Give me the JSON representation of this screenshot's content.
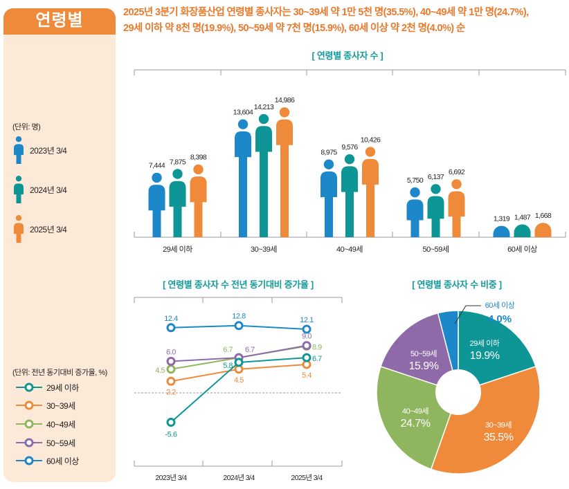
{
  "panel": {
    "title": "연령별",
    "bar_unit": "(단위: 명)",
    "bar_legend": [
      {
        "label": "2023년 3/4",
        "color": "#1c87c9"
      },
      {
        "label": "2024년 3/4",
        "color": "#0e9696"
      },
      {
        "label": "2025년 3/4",
        "color": "#ef8a3a"
      }
    ],
    "line_unit": "(단위: 전년 동기대비 증가율, %)",
    "line_legend": [
      {
        "label": "29세 이하",
        "color": "#0e9696"
      },
      {
        "label": "30~39세",
        "color": "#ef8a3a"
      },
      {
        "label": "40~49세",
        "color": "#8fb65e"
      },
      {
        "label": "50~59세",
        "color": "#8e6aa8"
      },
      {
        "label": "60세 이상",
        "color": "#1c87c9"
      }
    ]
  },
  "headline": {
    "line1": "2025년 3분기 화장품산업 연령별 종사자는 30~39세 약 1만 5천 명(35.5%), 40~49세 약 1만 명(24.7%),",
    "line2": "29세 이하 약 8천 명(19.9%), 50~59세 약 7천 명(15.9%), 60세 이상 약 2천 명(4.0%) 순"
  },
  "chart_data": [
    {
      "type": "bar",
      "title": "[ 연령별 종사자 수 ]",
      "unit": "명",
      "categories": [
        "29세 이하",
        "30~39세",
        "40~49세",
        "50~59세",
        "60세 이상"
      ],
      "series": [
        {
          "name": "2023년 3/4",
          "color": "#1c87c9",
          "values": [
            7444,
            13604,
            8975,
            5750,
            1319
          ],
          "labels": [
            "7,444",
            "13,604",
            "8,975",
            "5,750",
            "1,319"
          ]
        },
        {
          "name": "2024년 3/4",
          "color": "#0e9696",
          "values": [
            7875,
            14213,
            9576,
            6137,
            1487
          ],
          "labels": [
            "7,875",
            "14,213",
            "9,576",
            "6,137",
            "1,487"
          ]
        },
        {
          "name": "2025년 3/4",
          "color": "#ef8a3a",
          "values": [
            8398,
            14986,
            10426,
            6692,
            1668
          ],
          "labels": [
            "8,398",
            "14,986",
            "10,426",
            "6,692",
            "1,668"
          ]
        }
      ],
      "ylim": [
        0,
        16000
      ]
    },
    {
      "type": "line",
      "title": "[ 연령별 종사자 수 전년 동기대비 증가율 ]",
      "unit": "%",
      "x": [
        "2023년 3/4",
        "2024년 3/4",
        "2025년 3/4"
      ],
      "series": [
        {
          "name": "29세 이하",
          "color": "#0e9696",
          "values": [
            -5.6,
            5.8,
            6.7
          ],
          "labels": [
            "-5.6",
            "5.8",
            "6.7"
          ]
        },
        {
          "name": "30~39세",
          "color": "#ef8a3a",
          "values": [
            2.2,
            4.5,
            5.4
          ],
          "labels": [
            "2.2",
            "4.5",
            "5.4"
          ]
        },
        {
          "name": "40~49세",
          "color": "#8fb65e",
          "values": [
            4.5,
            6.7,
            8.9
          ],
          "labels": [
            "4.5",
            "6.7",
            "8.9"
          ]
        },
        {
          "name": "50~59세",
          "color": "#8e6aa8",
          "values": [
            6.0,
            6.7,
            9.0
          ],
          "labels": [
            "6.0",
            "6.7",
            "9.0"
          ]
        },
        {
          "name": "60세 이상",
          "color": "#1c87c9",
          "values": [
            12.4,
            12.8,
            12.1
          ],
          "labels": [
            "12.4",
            "12.8",
            "12.1"
          ]
        }
      ],
      "ylim": [
        -10,
        16
      ],
      "reference_line": 0
    },
    {
      "type": "pie",
      "title": "[ 연령별 종사자 수 비중 ]",
      "slices": [
        {
          "label": "29세 이하",
          "value": 19.9,
          "text": "19.9%",
          "color": "#0e9696"
        },
        {
          "label": "30~39세",
          "value": 35.5,
          "text": "35.5%",
          "color": "#ef8a3a"
        },
        {
          "label": "40~49세",
          "value": 24.7,
          "text": "24.7%",
          "color": "#8fb65e"
        },
        {
          "label": "50~59세",
          "value": 15.9,
          "text": "15.9%",
          "color": "#8e6aa8"
        },
        {
          "label": "60세 이상",
          "value": 4.0,
          "text": "4.0%",
          "color": "#1c87c9"
        }
      ],
      "donut": true
    }
  ]
}
